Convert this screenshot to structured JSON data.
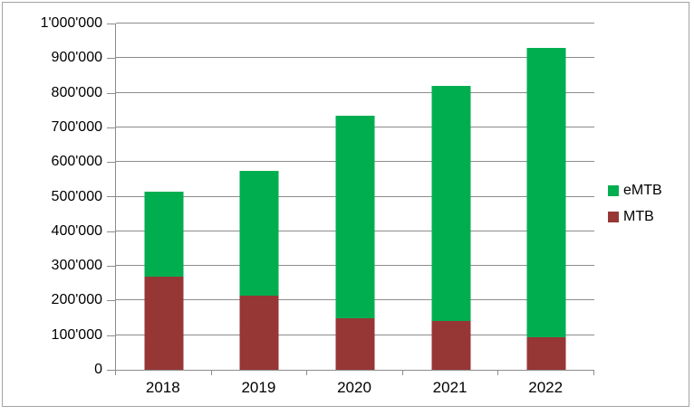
{
  "chart_data": {
    "type": "bar",
    "stacked": true,
    "title": "",
    "xlabel": "",
    "ylabel": "",
    "categories": [
      "2018",
      "2019",
      "2020",
      "2021",
      "2022"
    ],
    "series": [
      {
        "name": "MTB",
        "color": "#963735",
        "values": [
          270000,
          215000,
          150000,
          140000,
          95000
        ]
      },
      {
        "name": "eMTB",
        "color": "#00AE50",
        "values": [
          245000,
          360000,
          585000,
          680000,
          835000
        ]
      }
    ],
    "totals": [
      515000,
      575000,
      735000,
      820000,
      930000
    ],
    "ylim": [
      0,
      1000000
    ],
    "y_tick_step": 100000,
    "y_tick_labels": [
      "0",
      "100'000",
      "200'000",
      "300'000",
      "400'000",
      "500'000",
      "600'000",
      "700'000",
      "800'000",
      "900'000",
      "1'000'000"
    ],
    "grid": true,
    "legend_position": "right",
    "legend": [
      "eMTB",
      "MTB"
    ]
  },
  "colors": {
    "background": "#ffffff",
    "border": "#a3a3a3",
    "gridline": "#8c8c8c",
    "axis": "#8c8c8c",
    "text": "#000000",
    "emtb": "#00AE50",
    "mtb": "#963735"
  }
}
